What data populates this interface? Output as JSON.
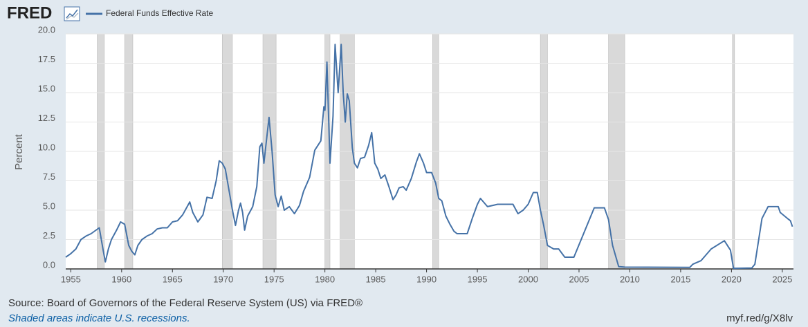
{
  "chart_data": {
    "type": "line",
    "logo": "FRED",
    "ylabel": "Percent",
    "source": "Source: Board of Governors of the Federal Reserve System (US) via FRED®",
    "note": "Shaded areas indicate U.S. recessions.",
    "link": "myf.red/g/X8lv",
    "xlim": [
      1954.5,
      2026.1
    ],
    "ylim": [
      0,
      20
    ],
    "xticks": [
      1955,
      1960,
      1965,
      1970,
      1975,
      1980,
      1985,
      1990,
      1995,
      2000,
      2005,
      2010,
      2015,
      2020,
      2025
    ],
    "yticks": [
      {
        "value": 0,
        "label": "0.0"
      },
      2.5,
      {
        "value": 5,
        "label": "5.0"
      },
      7.5,
      {
        "value": 10,
        "label": "10.0"
      },
      12.5,
      {
        "value": 15,
        "label": "15.0"
      },
      17.5,
      {
        "value": 20,
        "label": "20.0"
      }
    ],
    "grid": true,
    "recession_color": "#d9d9d9",
    "recessions": [
      [
        1957.6,
        1958.3
      ],
      [
        1960.3,
        1961.1
      ],
      [
        1969.9,
        1970.9
      ],
      [
        1973.9,
        1975.2
      ],
      [
        1980.0,
        1980.5
      ],
      [
        1981.5,
        1982.9
      ],
      [
        1990.6,
        1991.2
      ],
      [
        2001.2,
        2001.9
      ],
      [
        2007.9,
        2009.5
      ],
      [
        2020.1,
        2020.3
      ]
    ],
    "x": [
      1954.5,
      1955,
      1955.5,
      1956,
      1956.5,
      1957,
      1957.8,
      1958.2,
      1958.4,
      1958.7,
      1959,
      1959.5,
      1959.9,
      1960.3,
      1960.7,
      1961,
      1961.3,
      1961.6,
      1962,
      1962.5,
      1963,
      1963.5,
      1964,
      1964.5,
      1965,
      1965.5,
      1966,
      1966.7,
      1967,
      1967.5,
      1968,
      1968.4,
      1968.9,
      1969.3,
      1969.6,
      1969.9,
      1970.2,
      1970.6,
      1970.9,
      1971.2,
      1971.5,
      1971.7,
      1971.9,
      1972.1,
      1972.4,
      1972.9,
      1973.3,
      1973.6,
      1973.8,
      1974.0,
      1974.5,
      1974.8,
      1975.1,
      1975.4,
      1975.7,
      1976,
      1976.5,
      1977,
      1977.5,
      1977.9,
      1978.5,
      1979,
      1979.6,
      1979.9,
      1980.0,
      1980.2,
      1980.5,
      1980.8,
      1981.0,
      1981.3,
      1981.6,
      1981.8,
      1982,
      1982.2,
      1982.4,
      1982.7,
      1982.9,
      1983.2,
      1983.5,
      1983.9,
      1984.3,
      1984.6,
      1984.9,
      1985.2,
      1985.5,
      1985.9,
      1986.3,
      1986.7,
      1987.0,
      1987.3,
      1987.7,
      1988.0,
      1988.5,
      1989.0,
      1989.3,
      1989.7,
      1990.0,
      1990.5,
      1990.9,
      1991.2,
      1991.5,
      1991.9,
      1992.3,
      1992.7,
      1993,
      1994,
      1994.5,
      1995.0,
      1995.3,
      1996.0,
      1997,
      1998.5,
      1999,
      1999.5,
      2000.0,
      2000.5,
      2000.9,
      2001.2,
      2001.5,
      2001.9,
      2002.5,
      2003,
      2003.6,
      2004.5,
      2006.5,
      2007.5,
      2007.9,
      2008.3,
      2008.9,
      2009.5,
      2015.9,
      2016.2,
      2017,
      2018,
      2019.3,
      2019.9,
      2020.2,
      2022.0,
      2022.3,
      2023.0,
      2023.6,
      2024.6,
      2024.8,
      2025.5,
      2025.8,
      2026
    ],
    "series": [
      {
        "name": "Federal Funds Effective Rate",
        "color": "#4572a7",
        "values": [
          1.0,
          1.3,
          1.7,
          2.5,
          2.8,
          3.0,
          3.5,
          1.5,
          0.6,
          1.7,
          2.5,
          3.3,
          4.0,
          3.8,
          2.0,
          1.5,
          1.2,
          2.0,
          2.5,
          2.8,
          3.0,
          3.4,
          3.5,
          3.5,
          4.0,
          4.1,
          4.6,
          5.7,
          4.8,
          4.0,
          4.6,
          6.1,
          6.0,
          7.5,
          9.2,
          9.0,
          8.5,
          6.5,
          5.0,
          3.7,
          5.0,
          5.6,
          4.8,
          3.3,
          4.5,
          5.3,
          7.0,
          10.4,
          10.7,
          9.0,
          12.9,
          10.0,
          6.3,
          5.3,
          6.2,
          5.0,
          5.3,
          4.7,
          5.4,
          6.6,
          7.8,
          10.1,
          10.9,
          13.8,
          13.5,
          17.6,
          9.0,
          13.0,
          19.1,
          15.0,
          19.1,
          15.0,
          12.5,
          14.9,
          14.3,
          10.3,
          9.0,
          8.6,
          9.4,
          9.5,
          10.5,
          11.6,
          9.0,
          8.5,
          7.7,
          8.0,
          7.0,
          5.9,
          6.3,
          6.9,
          7.0,
          6.7,
          7.7,
          9.1,
          9.8,
          9.0,
          8.2,
          8.2,
          7.3,
          6.0,
          5.8,
          4.5,
          3.8,
          3.2,
          3.0,
          3.0,
          4.3,
          5.5,
          6.0,
          5.3,
          5.5,
          5.5,
          4.7,
          5.0,
          5.5,
          6.5,
          6.5,
          5.0,
          3.8,
          2.0,
          1.7,
          1.7,
          1.0,
          1.0,
          5.2,
          5.2,
          4.2,
          2.0,
          0.2,
          0.15,
          0.13,
          0.4,
          0.7,
          1.7,
          2.4,
          1.6,
          0.05,
          0.08,
          0.4,
          4.3,
          5.3,
          5.3,
          4.8,
          4.3,
          4.1,
          3.6
        ]
      }
    ]
  }
}
